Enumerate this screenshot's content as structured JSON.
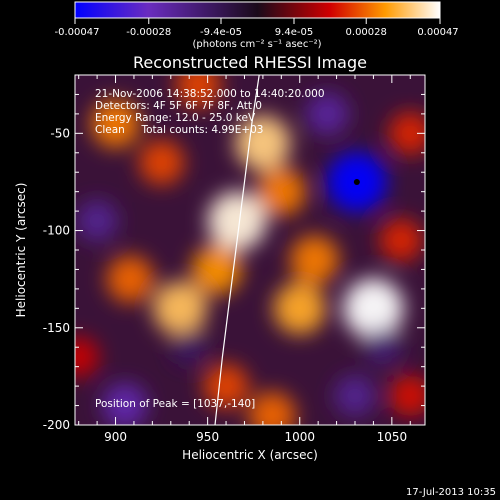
{
  "chart_data": {
    "type": "heatmap",
    "title": "Reconstructed RHESSI Image",
    "xlabel": "Heliocentric X (arcsec)",
    "ylabel": "Heliocentric Y (arcsec)",
    "xlim": [
      878,
      1068
    ],
    "ylim": [
      -200,
      -20
    ],
    "x_ticks": [
      900,
      950,
      1000,
      1050
    ],
    "x_tick_labels": [
      "900",
      "950",
      "1000",
      "1050"
    ],
    "y_ticks": [
      -50,
      -100,
      -150,
      -200
    ],
    "y_tick_labels": [
      "-50",
      "-100",
      "-150",
      "-200"
    ],
    "colorbar": {
      "ticks": [
        -0.00047,
        -0.00028,
        -9.4e-05,
        9.4e-05,
        0.00028,
        0.00047
      ],
      "tick_labels": [
        "-0.00047",
        "-0.00028",
        "-9.4e-05",
        "9.4e-05",
        "0.00028",
        "0.00047"
      ],
      "units": "(photons cm⁻² s⁻¹ asec⁻²)",
      "colors": [
        "#0000ff",
        "#6a2cc0",
        "#1a0a1a",
        "#d10000",
        "#ff9a00",
        "#ffffff"
      ]
    },
    "annotations": {
      "time": "21-Nov-2006 14:38:52.000 to 14:40:20.000",
      "detectors": "Detectors: 4F 5F 6F 7F 8F, Att 0",
      "energy": "Energy Range: 12.0 - 25.0 keV",
      "method": "Clean     Total counts: 4.99E+03",
      "peak": "Position of Peak = [1037,-140]"
    },
    "peak_position": [
      1037,
      -140
    ],
    "sources": [
      {
        "x": 1031,
        "y": -75,
        "level": -0.00047
      },
      {
        "x": 1040,
        "y": -140,
        "level": 0.00047
      },
      {
        "x": 966,
        "y": -95,
        "level": 0.00045
      },
      {
        "x": 980,
        "y": -55,
        "level": 0.0004
      },
      {
        "x": 900,
        "y": -45,
        "level": 0.0003
      },
      {
        "x": 935,
        "y": -140,
        "level": 0.00038
      },
      {
        "x": 925,
        "y": -65,
        "level": 0.00025
      },
      {
        "x": 1008,
        "y": -115,
        "level": 0.0003
      },
      {
        "x": 1000,
        "y": -140,
        "level": 0.00035
      },
      {
        "x": 908,
        "y": -125,
        "level": 0.00028
      },
      {
        "x": 1055,
        "y": -105,
        "level": 0.00022
      },
      {
        "x": 960,
        "y": -180,
        "level": 0.00025
      },
      {
        "x": 985,
        "y": -195,
        "level": 0.00028
      },
      {
        "x": 1060,
        "y": -185,
        "level": 0.0002
      },
      {
        "x": 945,
        "y": -25,
        "level": 0.00025
      },
      {
        "x": 1060,
        "y": -50,
        "level": 0.00022
      },
      {
        "x": 880,
        "y": -165,
        "level": 0.00018
      },
      {
        "x": 990,
        "y": -80,
        "level": 0.0003
      },
      {
        "x": 955,
        "y": -120,
        "level": 0.00032
      },
      {
        "x": 905,
        "y": -190,
        "level": -0.00025
      },
      {
        "x": 1030,
        "y": -185,
        "level": -0.0002
      },
      {
        "x": 1015,
        "y": -40,
        "level": -0.00022
      },
      {
        "x": 890,
        "y": -95,
        "level": -0.0002
      },
      {
        "x": 1045,
        "y": -160,
        "level": -0.00015
      },
      {
        "x": 940,
        "y": -160,
        "level": -0.00012
      }
    ],
    "limb_curve": [
      [
        978,
        -20
      ],
      [
        974,
        -45
      ],
      [
        970,
        -75
      ],
      [
        966,
        -105
      ],
      [
        962,
        -135
      ],
      [
        958,
        -165
      ],
      [
        954,
        -200
      ]
    ]
  },
  "footer": {
    "date": "17-Jul-2013 10:35"
  }
}
